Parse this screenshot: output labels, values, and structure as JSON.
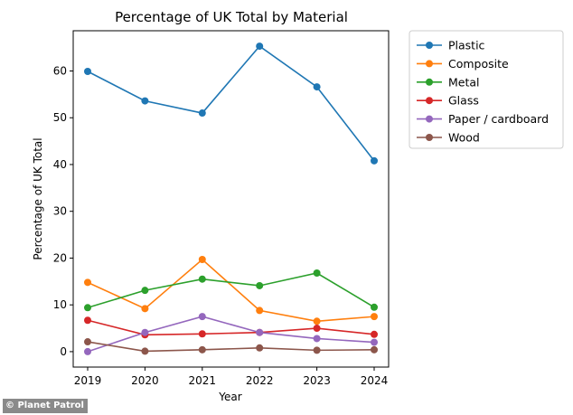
{
  "chart_data": {
    "type": "line",
    "title": "Percentage of UK Total by Material",
    "xlabel": "Year",
    "ylabel": "Percentage of UK Total",
    "x": [
      "2019",
      "2020",
      "2021",
      "2022",
      "2023",
      "2024"
    ],
    "ylim": [
      -3.3,
      68.6
    ],
    "yticks": [
      0,
      10,
      20,
      30,
      40,
      50,
      60
    ],
    "grid": false,
    "legend_position": "outside-top-right",
    "series": [
      {
        "name": "Plastic",
        "color": "#1f77b4",
        "values": [
          59.9,
          53.6,
          51.0,
          65.3,
          56.6,
          40.8
        ]
      },
      {
        "name": "Composite",
        "color": "#ff7f0e",
        "values": [
          14.8,
          9.2,
          19.7,
          8.8,
          6.5,
          7.5
        ]
      },
      {
        "name": "Metal",
        "color": "#2ca02c",
        "values": [
          9.4,
          13.1,
          15.5,
          14.1,
          16.8,
          9.5
        ]
      },
      {
        "name": "Glass",
        "color": "#d62728",
        "values": [
          6.7,
          3.6,
          3.8,
          4.1,
          5.0,
          3.7
        ]
      },
      {
        "name": "Paper / cardboard",
        "color": "#9467bd",
        "values": [
          0.0,
          4.1,
          7.5,
          4.1,
          2.8,
          2.0
        ]
      },
      {
        "name": "Wood",
        "color": "#8c564b",
        "values": [
          2.1,
          0.1,
          0.4,
          0.8,
          0.3,
          0.4
        ]
      }
    ]
  },
  "credit": "© Planet Patrol"
}
